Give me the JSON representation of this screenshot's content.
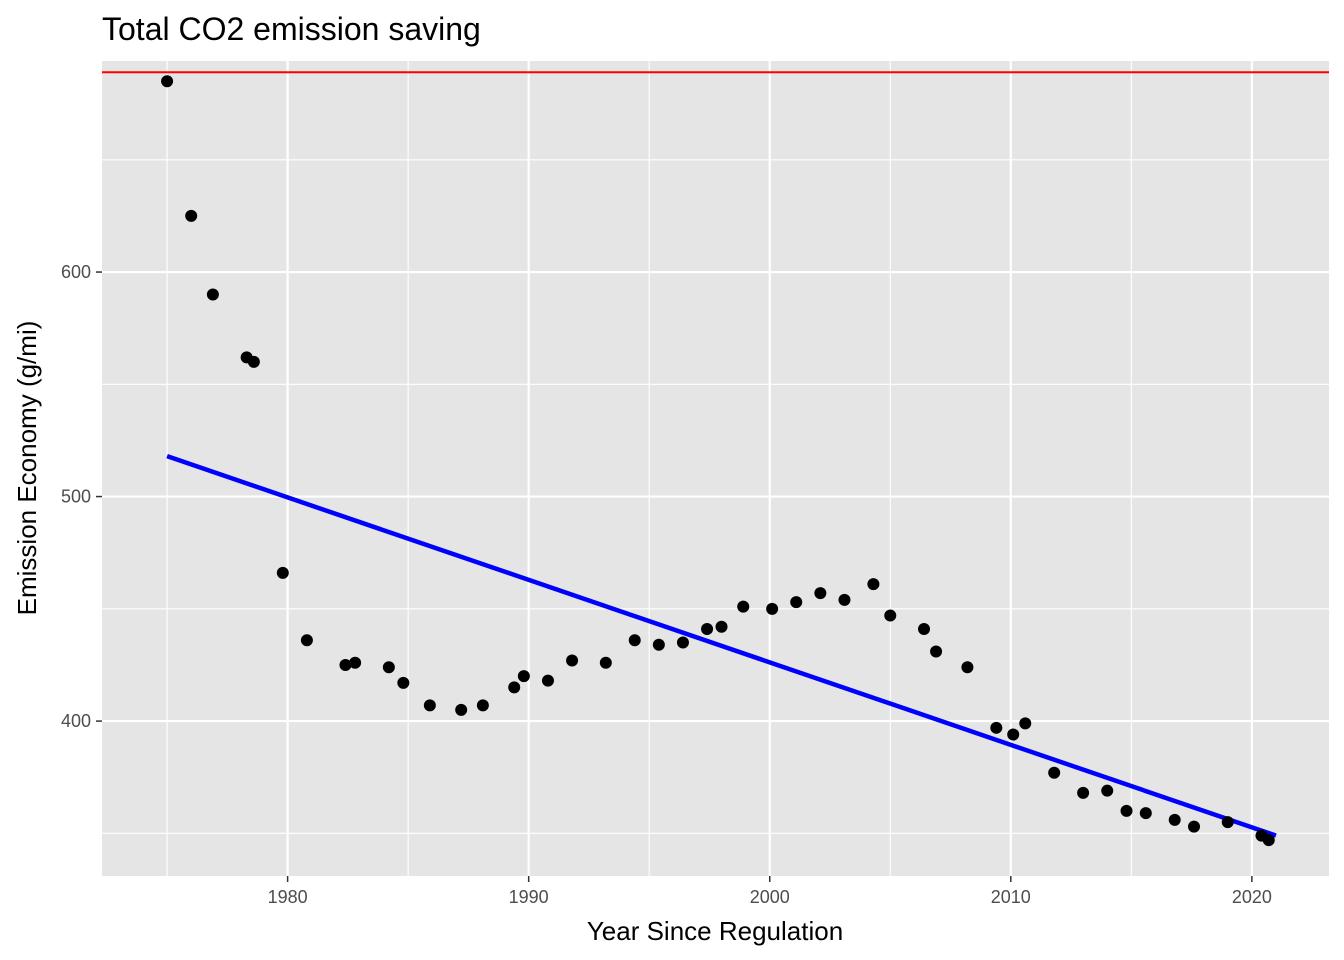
{
  "chart_data": {
    "type": "scatter",
    "title": "Total CO2 emission saving",
    "xlabel": "Year Since Regulation",
    "ylabel": "Emission Economy (g/mi)",
    "xlim": [
      1972.3,
      2023.2
    ],
    "ylim": [
      331,
      694
    ],
    "x_ticks": [
      1980,
      1990,
      2000,
      2010,
      2020
    ],
    "x_minor_ticks": [
      1975,
      1985,
      1995,
      2005,
      2015
    ],
    "y_ticks": [
      400,
      500,
      600
    ],
    "y_minor_ticks": [
      350,
      450,
      550,
      650
    ],
    "x_tick_labels": [
      "1980",
      "1990",
      "2000",
      "2010",
      "2020"
    ],
    "y_tick_labels": [
      "400",
      "500",
      "600"
    ],
    "grid": true,
    "points": {
      "x": [
        1975.0,
        1976.0,
        1976.9,
        1978.3,
        1978.6,
        1979.8,
        1980.8,
        1982.4,
        1982.8,
        1984.2,
        1984.8,
        1985.9,
        1987.2,
        1988.1,
        1989.4,
        1989.8,
        1990.8,
        1991.8,
        1993.2,
        1994.4,
        1995.4,
        1996.4,
        1997.4,
        1998.0,
        1998.9,
        2000.1,
        2001.1,
        2002.1,
        2003.1,
        2004.3,
        2005.0,
        2006.4,
        2006.9,
        2008.2,
        2009.4,
        2010.1,
        2010.6,
        2011.8,
        2013.0,
        2014.0,
        2014.8,
        2015.6,
        2016.8,
        2017.6,
        2019.0,
        2020.4,
        2020.7
      ],
      "y": [
        685,
        625,
        590,
        562,
        560,
        466,
        436,
        425,
        426,
        424,
        417,
        407,
        405,
        407,
        415,
        420,
        418,
        427,
        426,
        436,
        434,
        435,
        441,
        442,
        451,
        450,
        453,
        457,
        454,
        461,
        447,
        441,
        431,
        424,
        397,
        394,
        399,
        377,
        368,
        369,
        360,
        359,
        356,
        353,
        355,
        349,
        347
      ]
    },
    "hline": {
      "y": 689,
      "color": "#ff0000"
    },
    "trend_line": {
      "x": [
        1975,
        2021
      ],
      "y": [
        518,
        349
      ],
      "color": "#0000ff"
    },
    "point_color": "#000000",
    "panel_background": "#e5e5e5",
    "grid_color": "#ffffff"
  }
}
